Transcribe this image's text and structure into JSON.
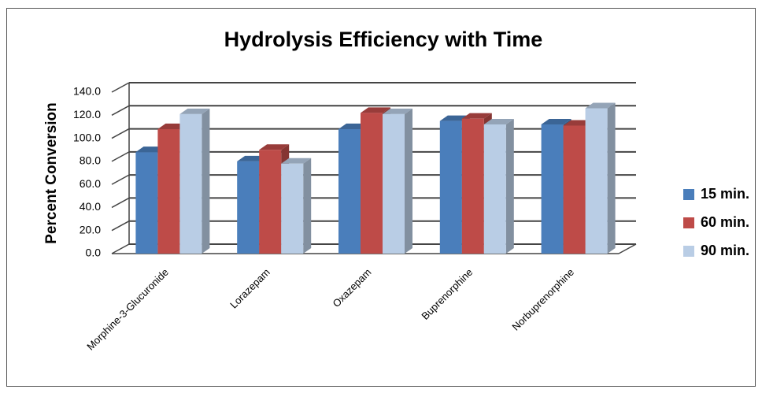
{
  "chart_data": {
    "type": "bar3d",
    "title": "Hydrolysis Efficiency with Time",
    "y_label": "Percent Conversion",
    "categories": [
      "Morphine-3-Glucuronide",
      "Lorazepam",
      "Oxazepam",
      "Buprenorphine",
      "Norbuprenorphine"
    ],
    "series": [
      {
        "name": "15 min.",
        "color": "#4a7ebb",
        "values": [
          88,
          80,
          108,
          115,
          112
        ]
      },
      {
        "name": "60 min.",
        "color": "#be4b48",
        "values": [
          108,
          90,
          122,
          117,
          111
        ]
      },
      {
        "name": "90 min.",
        "color": "#b9cde5",
        "values": [
          121,
          78,
          121,
          112,
          126
        ]
      }
    ],
    "ylim": [
      0,
      140
    ],
    "yticks": [
      {
        "value": 0,
        "label": "0.0"
      },
      {
        "value": 20,
        "label": "20.0"
      },
      {
        "value": 40,
        "label": "40.0"
      },
      {
        "value": 60,
        "label": "60.0"
      },
      {
        "value": 80,
        "label": "80.0"
      },
      {
        "value": 100,
        "label": "100.0"
      },
      {
        "value": 120,
        "label": "120.0"
      },
      {
        "value": 140,
        "label": "140.0"
      }
    ],
    "grid": true,
    "legend": "right"
  }
}
